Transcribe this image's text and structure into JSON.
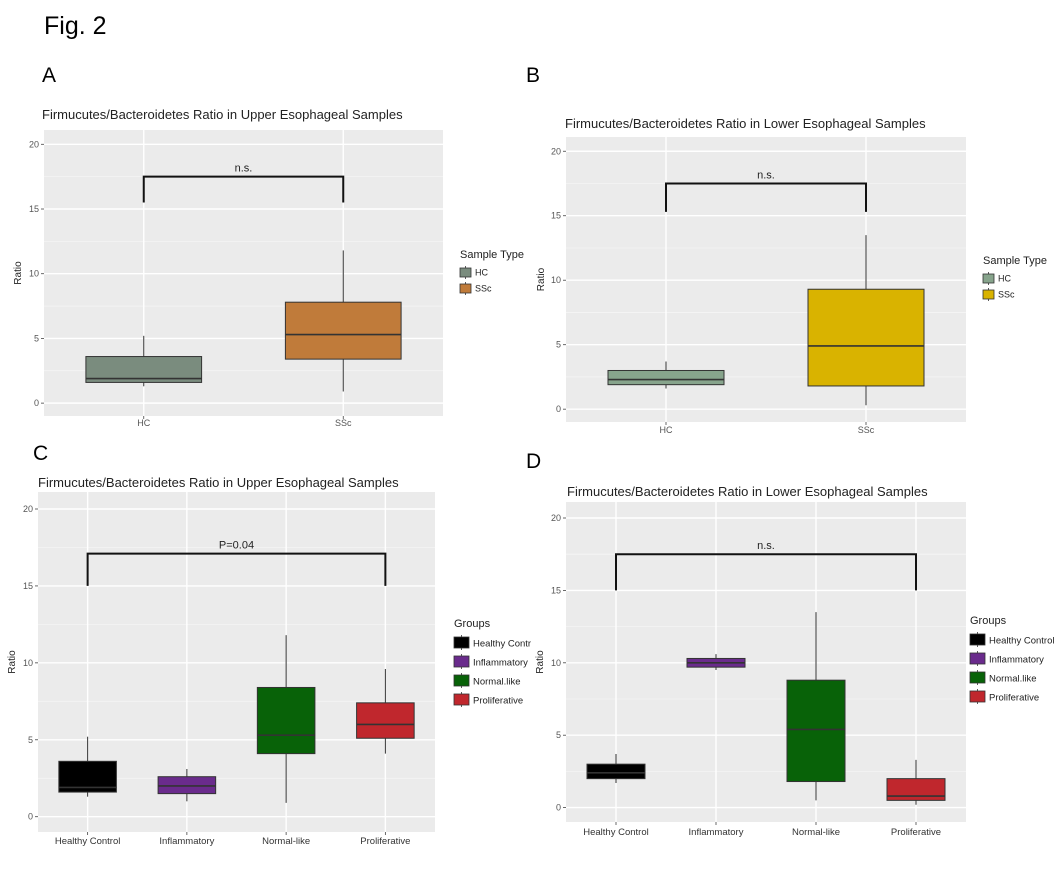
{
  "figure": {
    "title": "Fig. 2",
    "panel_labels": [
      "A",
      "B",
      "C",
      "D"
    ]
  },
  "chart_data": [
    {
      "type": "box",
      "title": "Firmucutes/Bacteroidetes Ratio in Upper Esophageal Samples",
      "xlabel": "",
      "ylabel": "Ratio",
      "ylim": [
        0,
        20
      ],
      "yticks": [
        "0",
        "5",
        "10",
        "15",
        "20"
      ],
      "categories": [
        "HC",
        "SSc"
      ],
      "boxes": [
        {
          "group": "HC",
          "min": 1.3,
          "q1": 1.6,
          "median": 1.9,
          "q3": 3.6,
          "max": 5.2,
          "color": "#7a8c7e"
        },
        {
          "group": "SSc",
          "min": 0.9,
          "q1": 3.4,
          "median": 5.3,
          "q3": 7.8,
          "max": 11.8,
          "color": "#c07b3a"
        }
      ],
      "significance": {
        "label": "n.s.",
        "from": 0,
        "to": 1,
        "y": 17.5,
        "drop": 15.5
      },
      "legend": {
        "title": "Sample Type",
        "entries": [
          "HC",
          "SSc"
        ],
        "position": "right"
      },
      "grid": true
    },
    {
      "type": "box",
      "title": "Firmucutes/Bacteroidetes Ratio in Lower Esophageal Samples",
      "xlabel": "",
      "ylabel": "Ratio",
      "ylim": [
        0,
        20
      ],
      "yticks": [
        "0",
        "5",
        "10",
        "15",
        "20"
      ],
      "categories": [
        "HC",
        "SSc"
      ],
      "boxes": [
        {
          "group": "HC",
          "min": 1.6,
          "q1": 1.9,
          "median": 2.3,
          "q3": 3.0,
          "max": 3.7,
          "color": "#87a48c"
        },
        {
          "group": "SSc",
          "min": 0.3,
          "q1": 1.8,
          "median": 4.9,
          "q3": 9.3,
          "max": 13.5,
          "color": "#d9b300"
        }
      ],
      "significance": {
        "label": "n.s.",
        "from": 0,
        "to": 1,
        "y": 17.5,
        "drop": 15.3
      },
      "legend": {
        "title": "Sample Type",
        "entries": [
          "HC",
          "SSc"
        ],
        "position": "right"
      },
      "grid": true
    },
    {
      "type": "box",
      "title": "Firmucutes/Bacteroidetes Ratio in Upper Esophageal Samples",
      "xlabel": "",
      "ylabel": "Ratio",
      "ylim": [
        0,
        20
      ],
      "yticks": [
        "0",
        "5",
        "10",
        "15",
        "20"
      ],
      "categories": [
        "Healthy Control",
        "Inflammatory",
        "Normal-like",
        "Proliferative"
      ],
      "boxes": [
        {
          "group": "Healthy Control",
          "min": 1.3,
          "q1": 1.6,
          "median": 1.9,
          "q3": 3.6,
          "max": 5.2,
          "color": "#000000"
        },
        {
          "group": "Inflammatory",
          "min": 1.0,
          "q1": 1.5,
          "median": 2.0,
          "q3": 2.6,
          "max": 3.1,
          "color": "#6a2b8c"
        },
        {
          "group": "Normal-like",
          "min": 0.9,
          "q1": 4.1,
          "median": 5.3,
          "q3": 8.4,
          "max": 11.8,
          "color": "#086208"
        },
        {
          "group": "Proliferative",
          "min": 4.1,
          "q1": 5.1,
          "median": 6.0,
          "q3": 7.4,
          "max": 9.6,
          "color": "#c0272d"
        }
      ],
      "significance": {
        "label": "P=0.04",
        "from": 0,
        "to": 3,
        "y": 17.1,
        "drop": 15.0
      },
      "legend": {
        "title": "Groups",
        "entries": [
          "Healthy Contr",
          "Inflammatory",
          "Normal.like",
          "Proliferative"
        ],
        "position": "right"
      },
      "grid": true
    },
    {
      "type": "box",
      "title": "Firmucutes/Bacteroidetes Ratio in Lower Esophageal Samples",
      "xlabel": "",
      "ylabel": "Ratio",
      "ylim": [
        0,
        20
      ],
      "yticks": [
        "0",
        "5",
        "10",
        "15",
        "20"
      ],
      "categories": [
        "Healthy Control",
        "Inflammatory",
        "Normal-like",
        "Proliferative"
      ],
      "boxes": [
        {
          "group": "Healthy Control",
          "min": 1.7,
          "q1": 2.0,
          "median": 2.4,
          "q3": 3.0,
          "max": 3.7,
          "color": "#000000"
        },
        {
          "group": "Inflammatory",
          "min": 9.5,
          "q1": 9.7,
          "median": 10.0,
          "q3": 10.3,
          "max": 10.6,
          "color": "#6a2b8c"
        },
        {
          "group": "Normal-like",
          "min": 0.5,
          "q1": 1.8,
          "median": 5.4,
          "q3": 8.8,
          "max": 13.5,
          "color": "#086208"
        },
        {
          "group": "Proliferative",
          "min": 0.2,
          "q1": 0.5,
          "median": 0.8,
          "q3": 2.0,
          "max": 3.3,
          "color": "#c0272d"
        }
      ],
      "significance": {
        "label": "n.s.",
        "from": 0,
        "to": 3,
        "y": 17.5,
        "drop": 15.0
      },
      "legend": {
        "title": "Groups",
        "entries": [
          "Healthy Control",
          "Inflammatory",
          "Normal.like",
          "Proliferative"
        ],
        "position": "right"
      },
      "grid": true
    }
  ]
}
